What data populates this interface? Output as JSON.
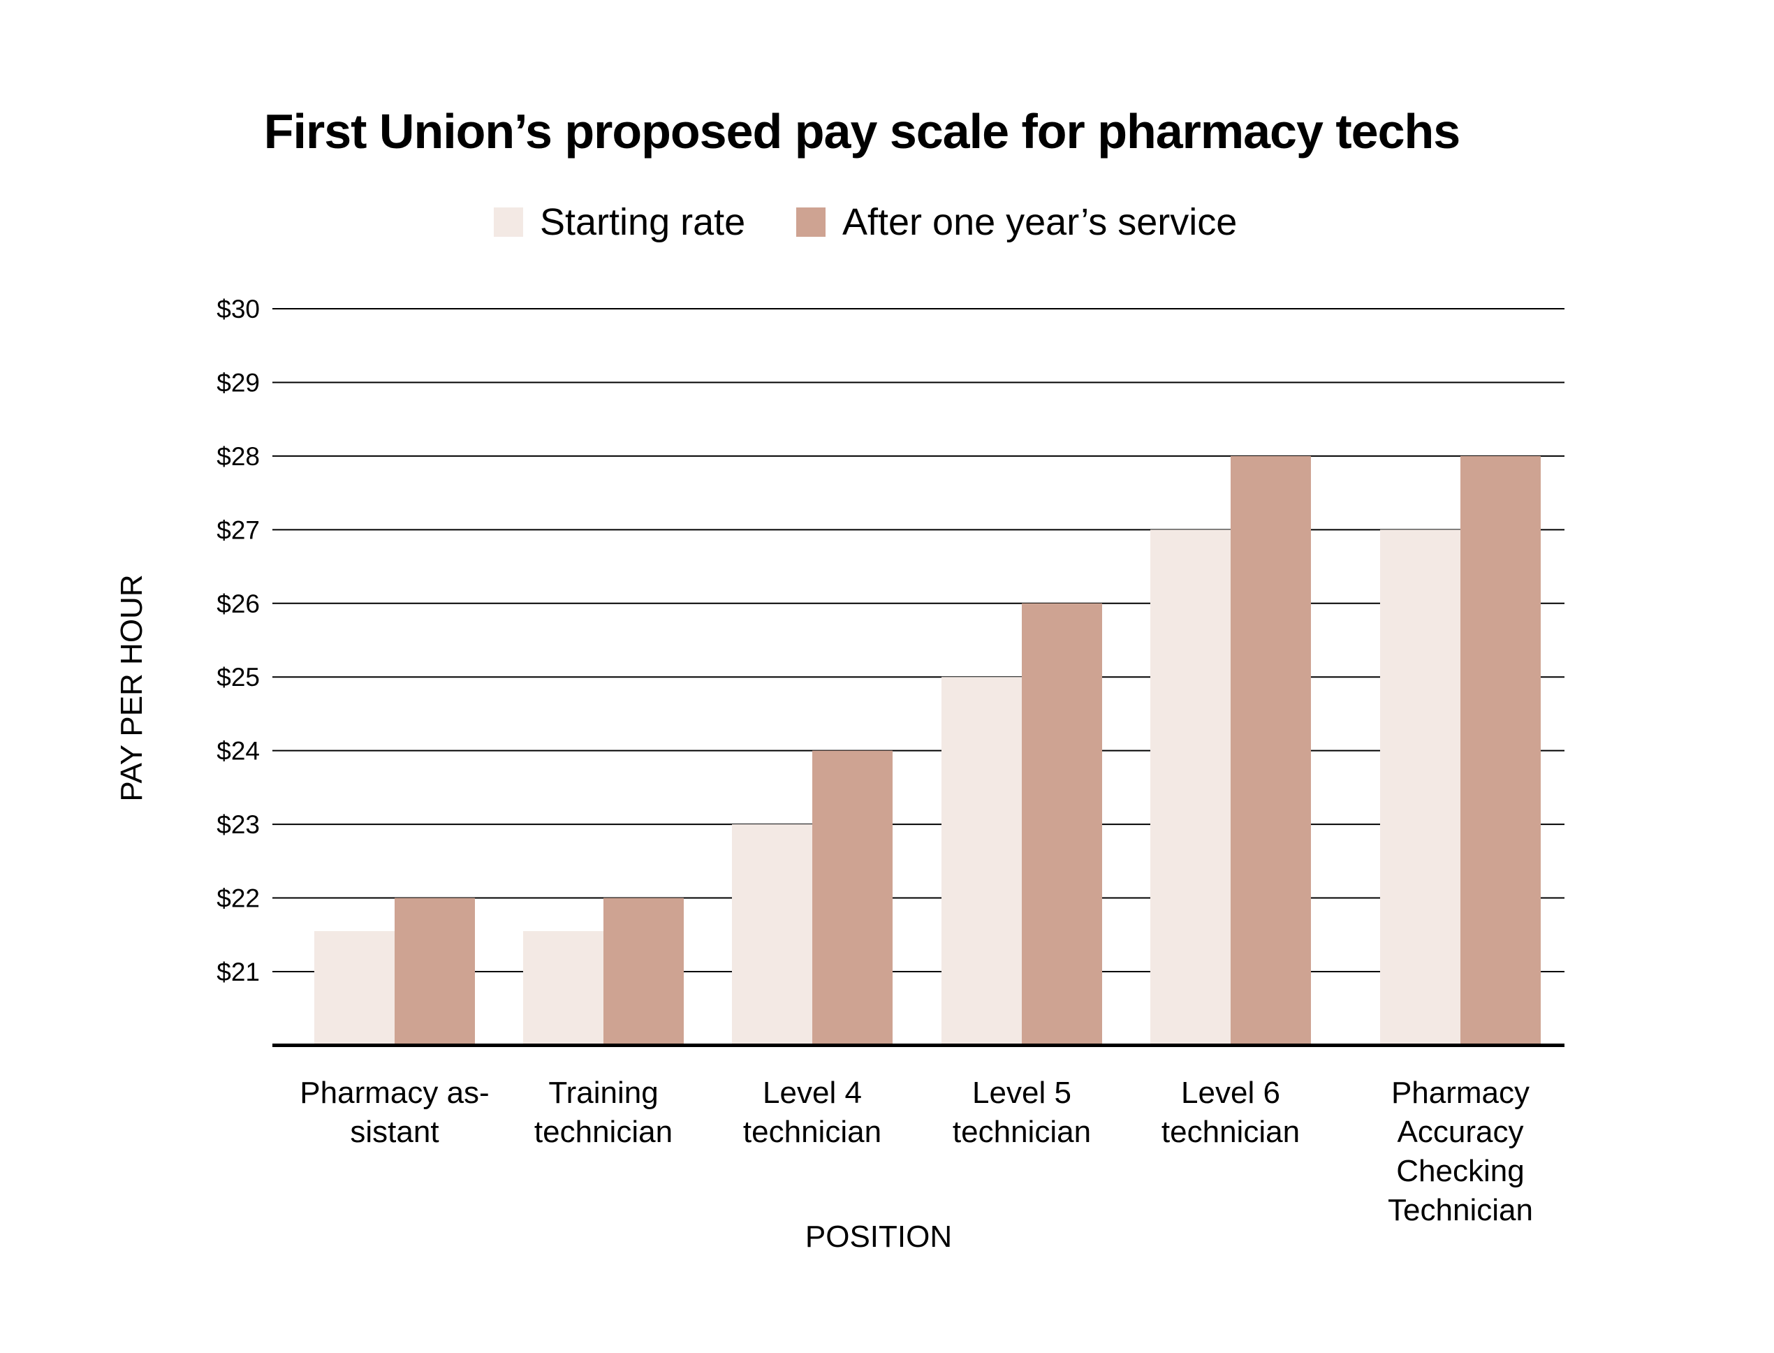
{
  "chart_data": {
    "type": "bar",
    "title": "First Union’s proposed pay scale for pharmacy techs",
    "xlabel": "POSITION",
    "ylabel": "PAY PER HOUR",
    "categories": [
      [
        "Pharmacy as-",
        "sistant"
      ],
      [
        "Training",
        "technician"
      ],
      [
        "Level 4",
        "technician"
      ],
      [
        "Level 5",
        "technician"
      ],
      [
        "Level 6",
        "technician"
      ],
      [
        "Pharmacy",
        "Accuracy",
        "Checking",
        "Technician"
      ]
    ],
    "series": [
      {
        "name": "Starting rate",
        "color": "#f3e9e4",
        "values": [
          21.55,
          21.55,
          23,
          25,
          27,
          27
        ]
      },
      {
        "name": "After one year’s service",
        "color": "#cea392",
        "values": [
          22,
          22,
          24,
          26,
          28,
          28
        ]
      }
    ],
    "ylim": [
      20,
      30
    ],
    "yticks": [
      {
        "value": 21,
        "label": "$21"
      },
      {
        "value": 22,
        "label": "$22"
      },
      {
        "value": 23,
        "label": "$23"
      },
      {
        "value": 24,
        "label": "$24"
      },
      {
        "value": 25,
        "label": "$25"
      },
      {
        "value": 26,
        "label": "$26"
      },
      {
        "value": 27,
        "label": "$27"
      },
      {
        "value": 28,
        "label": "$28"
      },
      {
        "value": 29,
        "label": "$29"
      },
      {
        "value": 30,
        "label": "$30"
      }
    ],
    "grid": true,
    "legend_position": "top-center"
  }
}
